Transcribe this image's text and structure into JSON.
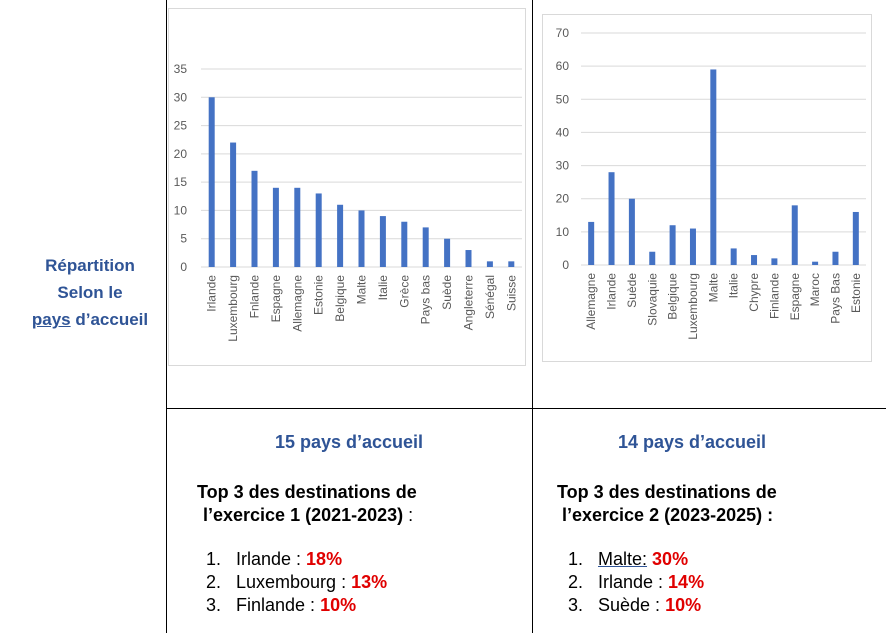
{
  "side_label": {
    "line1": "Répartition",
    "line2": "Selon le",
    "line3_underlined": "pays",
    "line3_rest": " d’accueil"
  },
  "colors": {
    "bar": "#4472C4",
    "title_blue": "#2F5496",
    "pct_red": "#E00000",
    "grid": "#D9D9D9"
  },
  "chart_data": [
    {
      "type": "bar",
      "title": "",
      "xlabel": "",
      "ylabel": "",
      "ylim": [
        0,
        35
      ],
      "yticks": [
        0,
        5,
        10,
        15,
        20,
        25,
        30,
        35
      ],
      "grid": true,
      "categories": [
        "Irlande",
        "Luxembourg",
        "Fnlande",
        "Espagne",
        "Allemagne",
        "Estonie",
        "Belgique",
        "Malte",
        "Italie",
        "Grèce",
        "Pays bas",
        "Suède",
        "Angleterre",
        "Sénégal",
        "Suisse"
      ],
      "values": [
        30,
        22,
        17,
        14,
        14,
        13,
        11,
        10,
        9,
        8,
        7,
        5,
        3,
        1,
        1
      ]
    },
    {
      "type": "bar",
      "title": "",
      "xlabel": "",
      "ylabel": "",
      "ylim": [
        0,
        70
      ],
      "yticks": [
        0,
        10,
        20,
        30,
        40,
        50,
        60,
        70
      ],
      "grid": true,
      "categories": [
        "Allemagne",
        "Irlande",
        "Suède",
        "Slovaquie",
        "Belgique",
        "Luxembourg",
        "Malte",
        "Italie",
        "Chypre",
        "Finlande",
        "Espagne",
        "Maroc",
        "Pays Bas",
        "Estonie"
      ],
      "values": [
        13,
        28,
        20,
        4,
        12,
        11,
        59,
        5,
        3,
        2,
        18,
        1,
        4,
        16
      ]
    }
  ],
  "left_panel": {
    "count_title": "15 pays d’accueil",
    "top_title_line1": "Top 3 des destinations de",
    "top_title_line2": "l’exercice 1 (2021-2023)",
    "top_title_suffix": " :",
    "items": [
      {
        "num": "1.",
        "label": "Irlande : ",
        "pct": "18%"
      },
      {
        "num": "2.",
        "label": "Luxembourg : ",
        "pct": "13%"
      },
      {
        "num": "3.",
        "label": "Finlande : ",
        "pct": "10%"
      }
    ]
  },
  "right_panel": {
    "count_title": "14 pays d’accueil",
    "top_title_line1": "Top 3 des destinations de",
    "top_title_line2": "l’exercice 2 (2023-2025) :",
    "items": [
      {
        "num": "1.",
        "label_underlined": "Malte:",
        "label": " ",
        "pct": "30%"
      },
      {
        "num": "2.",
        "label": "Irlande : ",
        "pct": "14%"
      },
      {
        "num": "3.",
        "label": "Suède : ",
        "pct": "10%"
      }
    ]
  }
}
